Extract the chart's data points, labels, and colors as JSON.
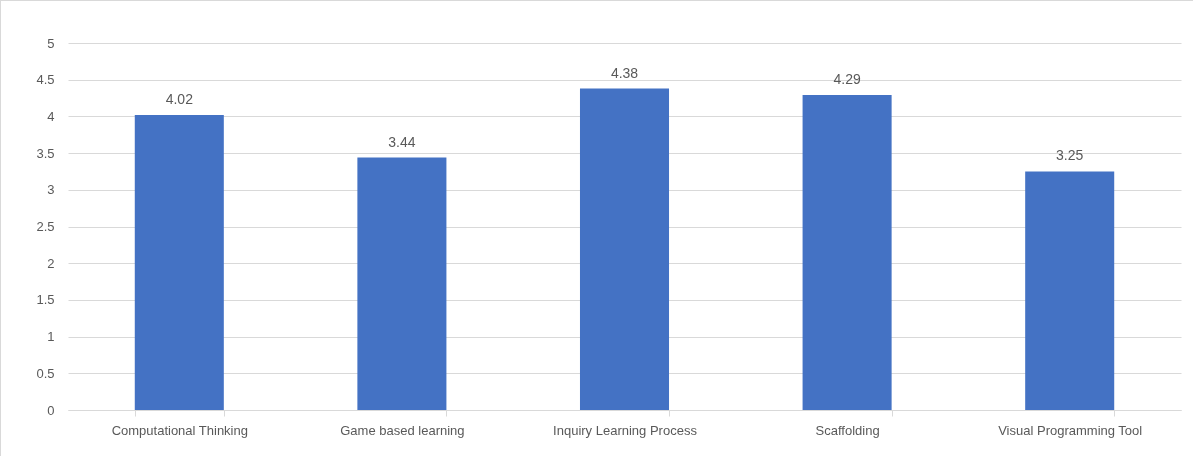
{
  "chart_data": {
    "type": "bar",
    "categories": [
      "Computational Thinking",
      "Game based learning",
      "Inquiry Learning Process",
      "Scaffolding",
      "Visual Programming Tool"
    ],
    "values": [
      4.02,
      3.44,
      4.38,
      4.29,
      3.25
    ],
    "color": "#4472c4",
    "ylim": [
      0,
      5
    ],
    "yticks": [
      0,
      0.5,
      1,
      1.5,
      2,
      2.5,
      3,
      3.5,
      4,
      4.5,
      5
    ],
    "grid": "y",
    "data_labels": true
  }
}
